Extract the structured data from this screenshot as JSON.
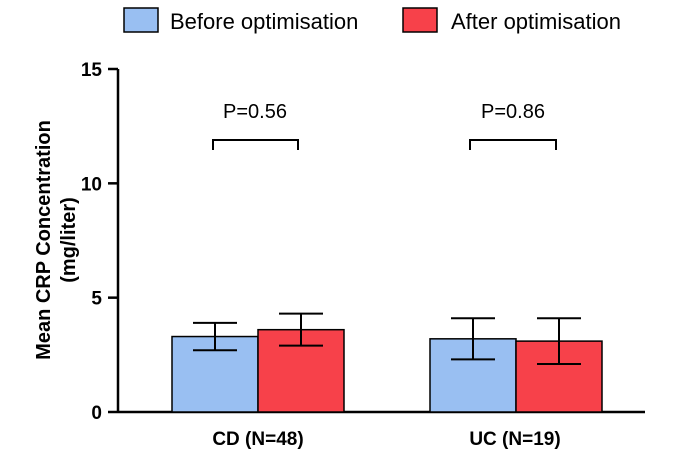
{
  "chart_data": {
    "type": "bar",
    "categories": [
      "CD (N=48)",
      "UC (N=19)"
    ],
    "ylabel_line1": "Mean CRP Concentration",
    "ylabel_line2": "(mg/liter)",
    "ylim": [
      0,
      15
    ],
    "yticks": [
      "0",
      "5",
      "10",
      "15"
    ],
    "series": [
      {
        "name": "Before optimisation",
        "color": "#99bff2",
        "values": [
          3.3,
          3.2
        ],
        "err_low": [
          2.7,
          2.3
        ],
        "err_high": [
          3.9,
          4.1
        ]
      },
      {
        "name": "After optimisation",
        "color": "#f7414a",
        "values": [
          3.6,
          3.1
        ],
        "err_low": [
          2.9,
          2.1
        ],
        "err_high": [
          4.3,
          4.1
        ]
      }
    ],
    "annotations": [
      "P=0.56",
      "P=0.86"
    ],
    "legend_position": "top",
    "grid": false
  }
}
